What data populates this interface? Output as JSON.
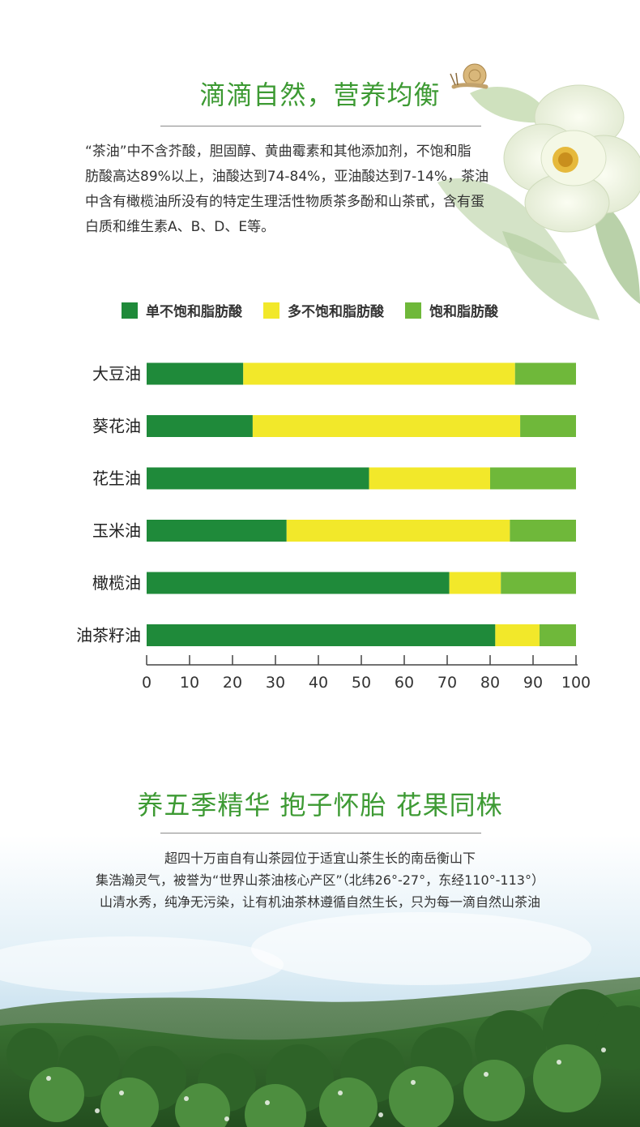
{
  "section1": {
    "title": "滴滴自然，营养均衡",
    "paragraph_lines": [
      "“茶油”中不含芥酸，胆固醇、黄曲霉素和其他添加剂，不饱和脂",
      "肪酸高达89%以上，油酸达到74-84%，亚油酸达到7-14%，茶油",
      "中含有橄榄油所没有的特定生理活性物质茶多酚和山茶甙，含有蛋",
      "白质和维生素A、B、D、E等。"
    ]
  },
  "chart_data": {
    "type": "bar",
    "orientation": "horizontal",
    "stacked": true,
    "categories": [
      "大豆油",
      "葵花油",
      "花生油",
      "玉米油",
      "橄榄油",
      "油茶籽油"
    ],
    "series": [
      {
        "name": "单不饱和脂肪酸",
        "color": "#1f8a3a",
        "values": [
          22.5,
          24.7,
          51.8,
          32.6,
          70.5,
          81.2
        ]
      },
      {
        "name": "多不饱和脂肪酸",
        "color": "#f2e82a",
        "values": [
          63.3,
          62.3,
          28.2,
          52.0,
          12.0,
          10.3
        ]
      },
      {
        "name": "饱和脂肪酸",
        "color": "#6fb83a",
        "values": [
          14.2,
          13.0,
          20.0,
          15.4,
          17.5,
          8.5
        ]
      }
    ],
    "xlim": [
      0,
      100
    ],
    "xticks": [
      "0",
      "10",
      "20",
      "30",
      "40",
      "50",
      "60",
      "70",
      "80",
      "90",
      "100"
    ],
    "legend_position": "top"
  },
  "section2": {
    "title": "养五季精华  抱子怀胎  花果同株",
    "paragraph_lines": [
      "超四十万亩自有山茶园位于适宜山茶生长的南岳衡山下",
      "集浩瀚灵气，被誉为“世界山茶油核心产区”（北纬26°-27°，东经110°-113°）",
      "山清水秀，纯净无污染，让有机油茶林遵循自然生长，只为每一滴自然山茶油"
    ]
  }
}
